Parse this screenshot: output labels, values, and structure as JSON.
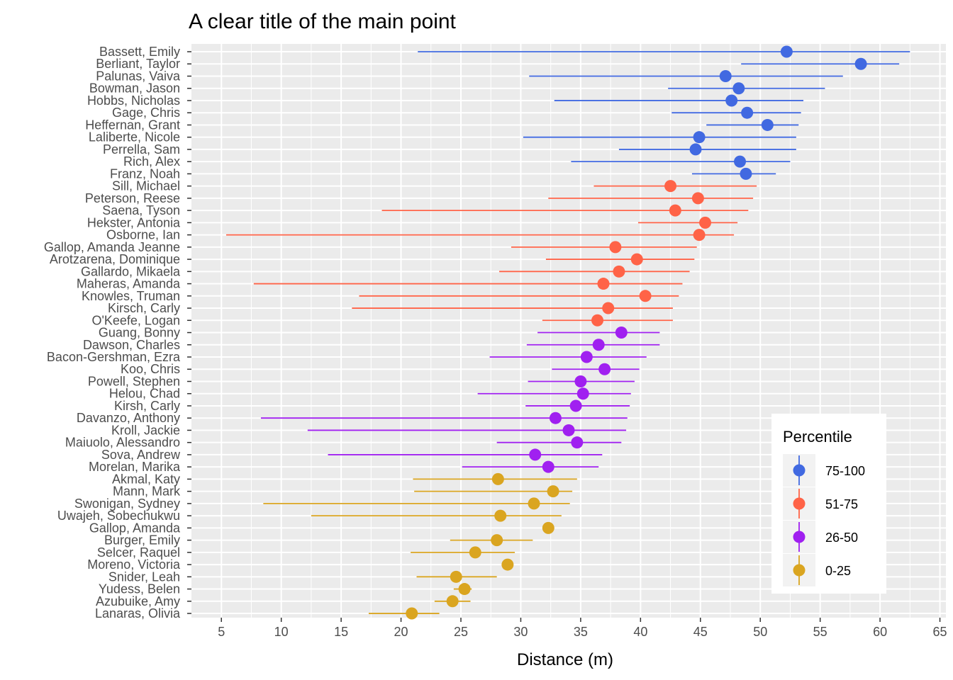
{
  "chart_data": {
    "type": "scatter",
    "subtype": "point-range",
    "title": "A clear title of the main point",
    "xlabel": "Distance (m)",
    "ylabel": "",
    "xlim": [
      2.5,
      65.5
    ],
    "xticks": [
      5,
      10,
      15,
      20,
      25,
      30,
      35,
      40,
      45,
      50,
      55,
      60,
      65
    ],
    "grid": true,
    "legend": {
      "title": "Percentile",
      "position": "bottom-right",
      "entries": [
        {
          "label": "75-100",
          "color": "#4169e1"
        },
        {
          "label": "51-75",
          "color": "#ff6347"
        },
        {
          "label": "26-50",
          "color": "#a020f0"
        },
        {
          "label": "0-25",
          "color": "#daa520"
        }
      ]
    },
    "rows": [
      {
        "name": "Bassett, Emily",
        "group": "75-100",
        "value": 52.2,
        "low": 21.4,
        "high": 62.5
      },
      {
        "name": "Berliant, Taylor",
        "group": "75-100",
        "value": 58.4,
        "low": 48.4,
        "high": 61.6
      },
      {
        "name": "Palunas, Vaiva",
        "group": "75-100",
        "value": 47.1,
        "low": 30.7,
        "high": 56.9
      },
      {
        "name": "Bowman, Jason",
        "group": "75-100",
        "value": 48.2,
        "low": 42.3,
        "high": 55.4
      },
      {
        "name": "Hobbs, Nicholas",
        "group": "75-100",
        "value": 47.6,
        "low": 32.8,
        "high": 53.6
      },
      {
        "name": "Gage, Chris",
        "group": "75-100",
        "value": 48.9,
        "low": 42.6,
        "high": 53.4
      },
      {
        "name": "Heffernan, Grant",
        "group": "75-100",
        "value": 50.6,
        "low": 45.5,
        "high": 53.2
      },
      {
        "name": "Laliberte, Nicole",
        "group": "75-100",
        "value": 44.9,
        "low": 30.2,
        "high": 53.0
      },
      {
        "name": "Perrella, Sam",
        "group": "75-100",
        "value": 44.6,
        "low": 38.2,
        "high": 53.0
      },
      {
        "name": "Rich, Alex",
        "group": "75-100",
        "value": 48.3,
        "low": 34.2,
        "high": 52.5
      },
      {
        "name": "Franz, Noah",
        "group": "75-100",
        "value": 48.8,
        "low": 44.3,
        "high": 51.3
      },
      {
        "name": "Sill, Michael",
        "group": "51-75",
        "value": 42.5,
        "low": 36.1,
        "high": 49.7
      },
      {
        "name": "Peterson, Reese",
        "group": "51-75",
        "value": 44.8,
        "low": 32.3,
        "high": 49.4
      },
      {
        "name": "Saena, Tyson",
        "group": "51-75",
        "value": 42.9,
        "low": 18.4,
        "high": 49.0
      },
      {
        "name": "Hekster, Antonia",
        "group": "51-75",
        "value": 45.4,
        "low": 39.8,
        "high": 48.1
      },
      {
        "name": "Osborne, Ian",
        "group": "51-75",
        "value": 44.9,
        "low": 5.4,
        "high": 47.8
      },
      {
        "name": "Gallop, Amanda Jeanne",
        "group": "51-75",
        "value": 37.9,
        "low": 29.2,
        "high": 44.7
      },
      {
        "name": "Arotzarena, Dominique",
        "group": "51-75",
        "value": 39.7,
        "low": 32.1,
        "high": 44.5
      },
      {
        "name": "Gallardo, Mikaela",
        "group": "51-75",
        "value": 38.2,
        "low": 28.2,
        "high": 44.1
      },
      {
        "name": "Maheras, Amanda",
        "group": "51-75",
        "value": 36.9,
        "low": 7.7,
        "high": 43.5
      },
      {
        "name": "Knowles, Truman",
        "group": "51-75",
        "value": 40.4,
        "low": 16.5,
        "high": 43.2
      },
      {
        "name": "Kirsch, Carly",
        "group": "51-75",
        "value": 37.3,
        "low": 15.9,
        "high": 42.7
      },
      {
        "name": "O'Keefe, Logan",
        "group": "51-75",
        "value": 36.4,
        "low": 31.8,
        "high": 42.7
      },
      {
        "name": "Guang, Bonny",
        "group": "26-50",
        "value": 38.4,
        "low": 31.4,
        "high": 41.6
      },
      {
        "name": "Dawson, Charles",
        "group": "26-50",
        "value": 36.5,
        "low": 30.5,
        "high": 41.6
      },
      {
        "name": "Bacon-Gershman, Ezra",
        "group": "26-50",
        "value": 35.5,
        "low": 27.4,
        "high": 40.5
      },
      {
        "name": "Koo, Chris",
        "group": "26-50",
        "value": 37.0,
        "low": 32.6,
        "high": 39.9
      },
      {
        "name": "Powell, Stephen",
        "group": "26-50",
        "value": 35.0,
        "low": 30.6,
        "high": 39.5
      },
      {
        "name": "Helou, Chad",
        "group": "26-50",
        "value": 35.2,
        "low": 26.4,
        "high": 39.2
      },
      {
        "name": "Kirsh, Carly",
        "group": "26-50",
        "value": 34.6,
        "low": 30.4,
        "high": 39.1
      },
      {
        "name": "Davanzo, Anthony",
        "group": "26-50",
        "value": 32.9,
        "low": 8.3,
        "high": 38.9
      },
      {
        "name": "Kroll, Jackie",
        "group": "26-50",
        "value": 34.0,
        "low": 12.2,
        "high": 38.8
      },
      {
        "name": "Maiuolo, Alessandro",
        "group": "26-50",
        "value": 34.7,
        "low": 28.0,
        "high": 38.4
      },
      {
        "name": "Sova, Andrew",
        "group": "26-50",
        "value": 31.2,
        "low": 13.9,
        "high": 36.8
      },
      {
        "name": "Morelan, Marika",
        "group": "26-50",
        "value": 32.3,
        "low": 25.1,
        "high": 36.5
      },
      {
        "name": "Akmal, Katy",
        "group": "0-25",
        "value": 28.1,
        "low": 21.0,
        "high": 34.7
      },
      {
        "name": "Mann, Mark",
        "group": "0-25",
        "value": 32.7,
        "low": 21.1,
        "high": 34.3
      },
      {
        "name": "Swonigan, Sydney",
        "group": "0-25",
        "value": 31.1,
        "low": 8.5,
        "high": 34.1
      },
      {
        "name": "Uwajeh, Sobechukwu",
        "group": "0-25",
        "value": 28.3,
        "low": 12.5,
        "high": 33.4
      },
      {
        "name": "Gallop, Amanda",
        "group": "0-25",
        "value": 32.3,
        "low": 32.3,
        "high": 32.3
      },
      {
        "name": "Burger, Emily",
        "group": "0-25",
        "value": 28.0,
        "low": 24.1,
        "high": 31.0
      },
      {
        "name": "Selcer, Raquel",
        "group": "0-25",
        "value": 26.2,
        "low": 20.8,
        "high": 29.5
      },
      {
        "name": "Moreno, Victoria",
        "group": "0-25",
        "value": 28.9,
        "low": 28.9,
        "high": 28.9
      },
      {
        "name": "Snider, Leah",
        "group": "0-25",
        "value": 24.6,
        "low": 21.3,
        "high": 28.0
      },
      {
        "name": "Yudess, Belen",
        "group": "0-25",
        "value": 25.3,
        "low": 24.4,
        "high": 25.9
      },
      {
        "name": "Azubuike, Amy",
        "group": "0-25",
        "value": 24.3,
        "low": 22.8,
        "high": 25.8
      },
      {
        "name": "Lanaras, Olivia",
        "group": "0-25",
        "value": 20.9,
        "low": 17.3,
        "high": 23.2
      }
    ]
  }
}
